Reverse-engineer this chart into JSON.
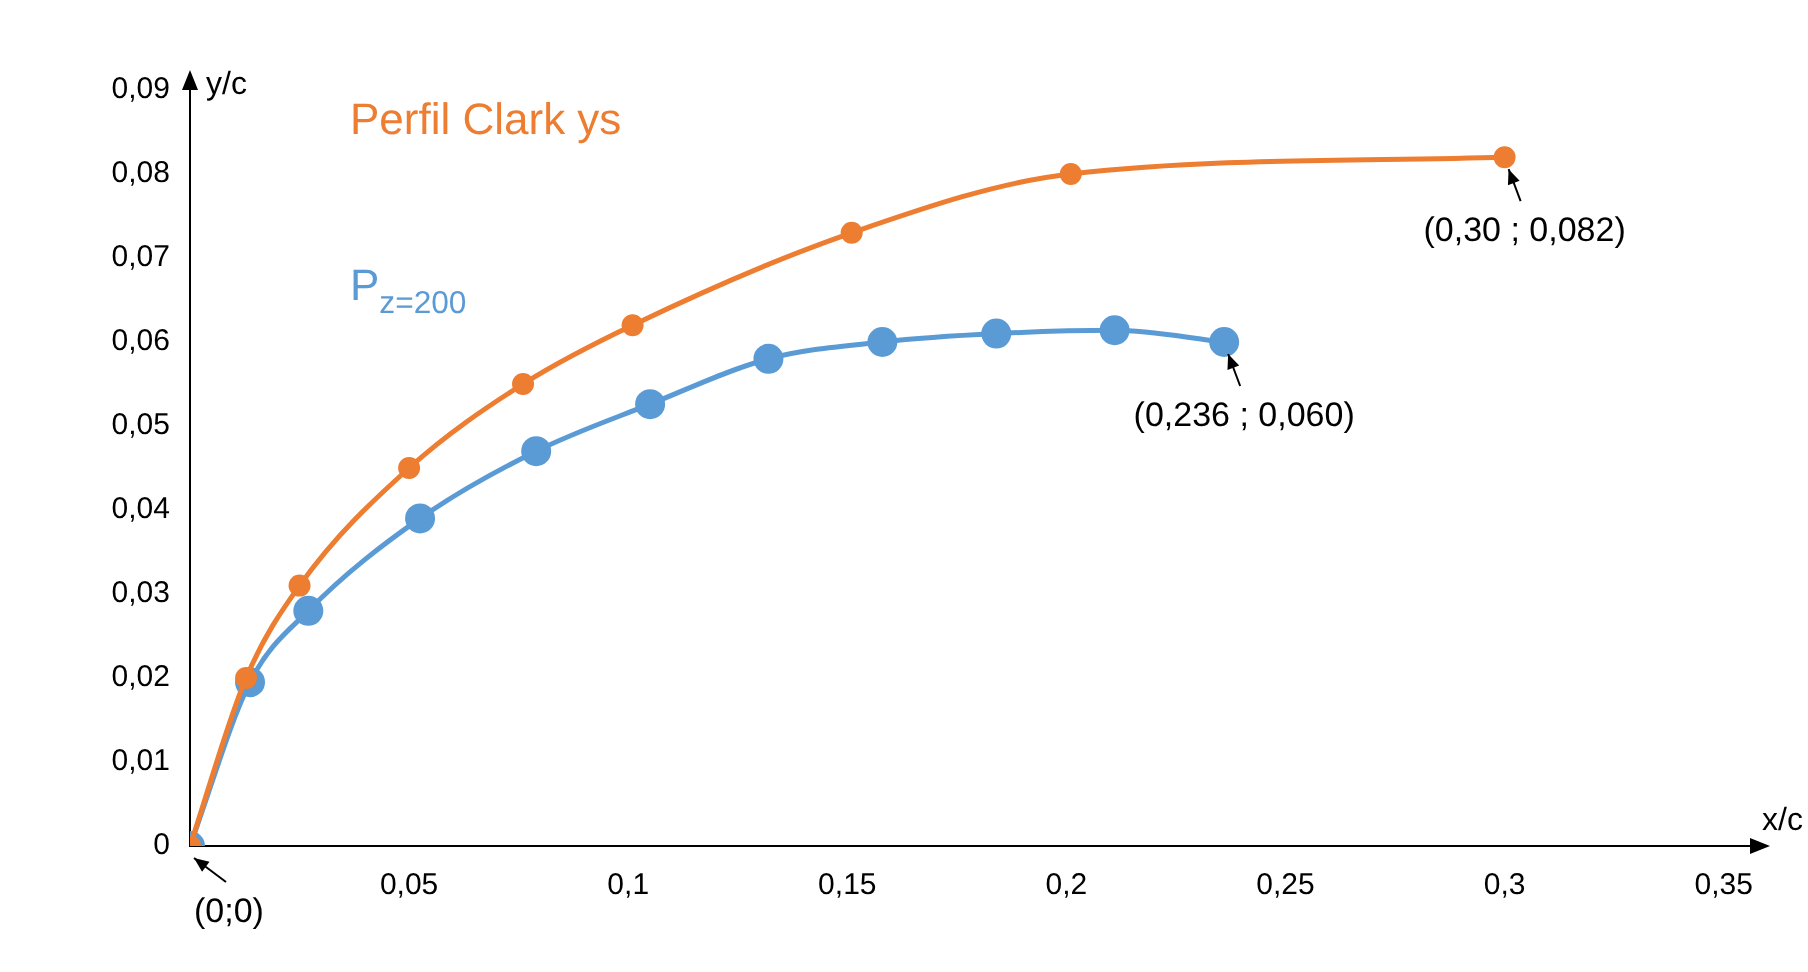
{
  "chart_data": {
    "type": "line",
    "xlabel": "x/c",
    "ylabel": "y/c",
    "xlim": [
      0,
      0.356
    ],
    "ylim": [
      0,
      0.09
    ],
    "xticks": [
      {
        "value": 0.05,
        "label": "0,05"
      },
      {
        "value": 0.1,
        "label": "0,1"
      },
      {
        "value": 0.15,
        "label": "0,15"
      },
      {
        "value": 0.2,
        "label": "0,2"
      },
      {
        "value": 0.25,
        "label": "0,25"
      },
      {
        "value": 0.3,
        "label": "0,3"
      },
      {
        "value": 0.35,
        "label": "0,35"
      }
    ],
    "yticks": [
      0,
      {
        "value": 0.01,
        "label": "0,01"
      },
      {
        "value": 0.02,
        "label": "0,02"
      },
      {
        "value": 0.03,
        "label": "0,03"
      },
      {
        "value": 0.04,
        "label": "0,04"
      },
      {
        "value": 0.05,
        "label": "0,05"
      },
      {
        "value": 0.06,
        "label": "0,06"
      },
      {
        "value": 0.07,
        "label": "0,07"
      },
      {
        "value": 0.08,
        "label": "0,08"
      },
      {
        "value": 0.09,
        "label": "0,09"
      }
    ],
    "grid": false,
    "legend": false,
    "marker": "circle",
    "line_style": "solid",
    "series": [
      {
        "name": "Perfil Clark ys",
        "color": "#ed7d31",
        "x": [
          0,
          0.0128,
          0.025,
          0.05,
          0.076,
          0.101,
          0.151,
          0.201,
          0.3
        ],
        "values": [
          0,
          0.02,
          0.031,
          0.045,
          0.055,
          0.062,
          0.073,
          0.08,
          0.082
        ]
      },
      {
        "name": "P$_{z=200}$",
        "color": "#5b9bd5",
        "x": [
          0,
          0.0137,
          0.027,
          0.0525,
          0.079,
          0.105,
          0.132,
          0.158,
          0.184,
          0.211,
          0.236
        ],
        "values": [
          0,
          0.0195,
          0.028,
          0.039,
          0.047,
          0.0526,
          0.058,
          0.06,
          0.061,
          0.0614,
          0.06
        ]
      }
    ],
    "annotations": [
      {
        "text": "(0;0)",
        "x": 0,
        "y": 0
      },
      {
        "text": "(0,236 ; 0,060)",
        "x": 0.236,
        "y": 0.06
      },
      {
        "text": "(0,30 ; 0,082)",
        "x": 0.3,
        "y": 0.082
      }
    ]
  }
}
